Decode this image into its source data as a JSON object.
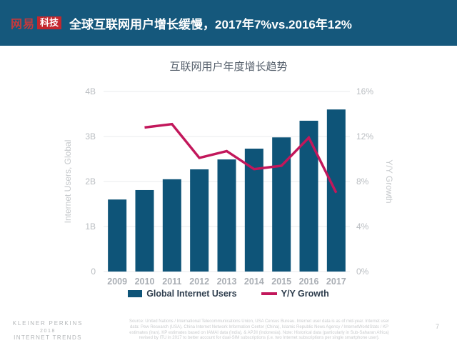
{
  "header": {
    "logo": {
      "brand": "网易",
      "badge": "科技"
    },
    "title": "全球互联网用户增长缓慢，2017年7%vs.2016年12%"
  },
  "chart_data": {
    "type": "combo-bar-line",
    "title": "互联网用户年度增长趋势",
    "categories": [
      "2009",
      "2010",
      "2011",
      "2012",
      "2013",
      "2014",
      "2015",
      "2016",
      "2017"
    ],
    "series": [
      {
        "name": "Global Internet Users",
        "type": "bar",
        "axis": "left",
        "color": "#0e5478",
        "values": [
          1.6,
          1.81,
          2.05,
          2.27,
          2.49,
          2.73,
          2.98,
          3.35,
          3.6
        ]
      },
      {
        "name": "Y/Y Growth",
        "type": "line",
        "axis": "right",
        "color": "#c2175b",
        "values": [
          null,
          12.8,
          13.1,
          10.1,
          10.7,
          9.1,
          9.4,
          11.9,
          7.0
        ]
      }
    ],
    "left_axis": {
      "label": "Internet Users, Global",
      "lim": [
        0,
        4
      ],
      "ticks": [
        {
          "value": 0,
          "label": "0"
        },
        {
          "value": 1,
          "label": "1B"
        },
        {
          "value": 2,
          "label": "2B"
        },
        {
          "value": 3,
          "label": "3B"
        },
        {
          "value": 4,
          "label": "4B"
        }
      ]
    },
    "right_axis": {
      "label": "Y/Y Growth",
      "lim": [
        0,
        16
      ],
      "ticks": [
        {
          "value": 0,
          "label": "0%"
        },
        {
          "value": 4,
          "label": "4%"
        },
        {
          "value": 8,
          "label": "8%"
        },
        {
          "value": 12,
          "label": "12%"
        },
        {
          "value": 16,
          "label": "16%"
        }
      ]
    },
    "grid": true,
    "legend_position": "bottom"
  },
  "footer": {
    "brand_lines": [
      "KLEINER PERKINS",
      "2018",
      "INTERNET TRENDS"
    ],
    "source_lines": [
      "Source: United Nations / International Telecommunications Union, USA Census Bureau. Internet user data is as of mid-year. Internet user",
      "data: Pew Research (USA), China Internet Network Information Center (China), Islamic Republic News Agency / InternetWorldStats / KP",
      "estimates (Iran). KP estimates based on IAMAI data (India), & APJII (Indonesia). Note: Historical data (particularly in Sub-Saharan Africa)",
      "revised by ITU in 2017 to better account for dual-SIM subscriptions (i.e. two Internet subscriptions per single smartphone user)."
    ],
    "page_number": "7"
  },
  "colors": {
    "header_bg": "#15587c",
    "logo_red": "#c3272e",
    "bar": "#0e5478",
    "line": "#c2175b",
    "grid": "#e9ebec",
    "tick_label": "#b9bdc1",
    "axis_title": "#c5c8cb",
    "x_label": "#a9aeb4"
  }
}
